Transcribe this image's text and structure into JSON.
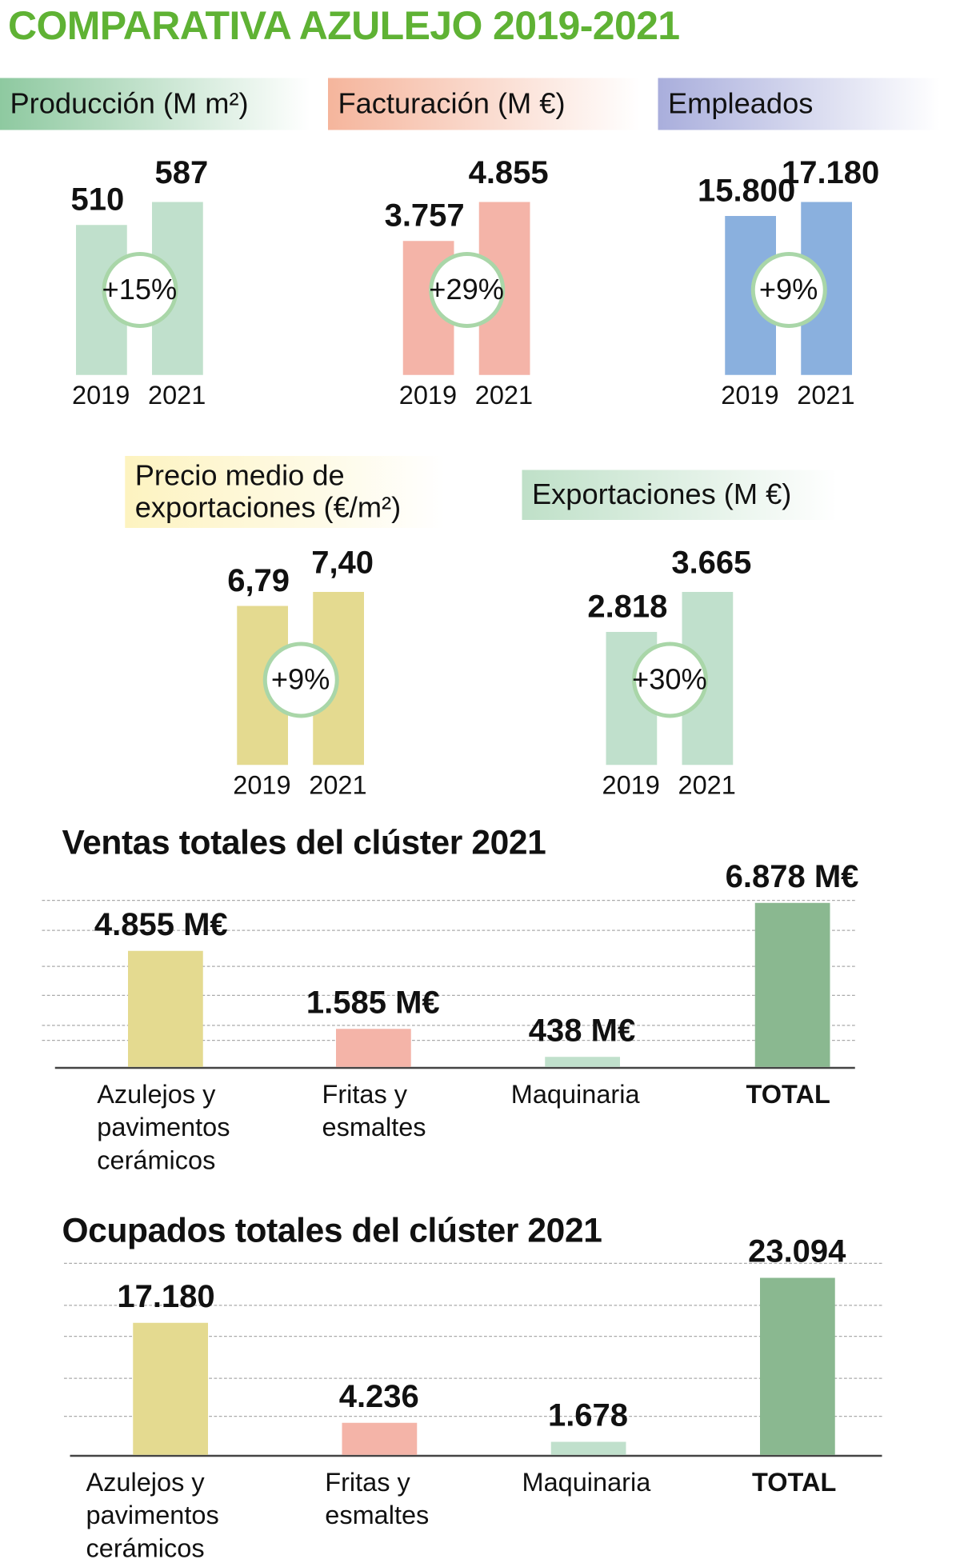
{
  "title": "COMPARATIVA AZULEJO 2019-2021",
  "colors": {
    "title": "#5fb234",
    "green_light": "#c0e0cc",
    "salmon": "#f4b4a8",
    "blue": "#8ab0de",
    "yellow": "#e4da90",
    "total_green": "#8ab890",
    "circle_border": "#a9d6a8"
  },
  "chart_data": [
    {
      "type": "bar",
      "title": "Producción (M m²)",
      "categories": [
        "2019",
        "2021"
      ],
      "values": [
        510,
        587
      ],
      "value_labels": [
        "510",
        "587"
      ],
      "change": "+15%",
      "color": "#c0e0cc"
    },
    {
      "type": "bar",
      "title": "Facturación (M €)",
      "categories": [
        "2019",
        "2021"
      ],
      "values": [
        3757,
        4855
      ],
      "value_labels": [
        "3.757",
        "4.855"
      ],
      "change": "+29%",
      "color": "#f4b4a8"
    },
    {
      "type": "bar",
      "title": "Empleados",
      "categories": [
        "2019",
        "2021"
      ],
      "values": [
        15800,
        17180
      ],
      "value_labels": [
        "15.800",
        "17.180"
      ],
      "change": "+9%",
      "color": "#8ab0de"
    },
    {
      "type": "bar",
      "title_lines": [
        "Precio medio de",
        "exportaciones (€/m²)"
      ],
      "categories": [
        "2019",
        "2021"
      ],
      "values": [
        6.79,
        7.4
      ],
      "value_labels": [
        "6,79",
        "7,40"
      ],
      "change": "+9%",
      "color": "#e4da90"
    },
    {
      "type": "bar",
      "title": "Exportaciones (M €)",
      "categories": [
        "2019",
        "2021"
      ],
      "values": [
        2818,
        3665
      ],
      "value_labels": [
        "2.818",
        "3.665"
      ],
      "change": "+30%",
      "color": "#c0e0cc"
    },
    {
      "type": "bar",
      "title": "Ventas totales del  clúster 2021",
      "categories": [
        "Azulejos y\npavimentos\ncerámicos",
        "Fritas y\nesmaltes",
        "Maquinaria",
        "TOTAL"
      ],
      "values": [
        4855,
        1585,
        438,
        6878
      ],
      "value_labels": [
        "4.855 M€",
        "1.585 M€",
        "438 M€",
        "6.878 M€"
      ],
      "colors": [
        "#e4da90",
        "#f4b4a8",
        "#c0e0cc",
        "#8ab890"
      ],
      "grid": true
    },
    {
      "type": "bar",
      "title": "Ocupados totales del  clúster 2021",
      "categories": [
        "Azulejos y\npavimentos\ncerámicos",
        "Fritas y\nesmaltes",
        "Maquinaria",
        "TOTAL"
      ],
      "values": [
        17180,
        4236,
        1678,
        23094
      ],
      "value_labels": [
        "17.180",
        "4.236",
        "1.678",
        "23.094"
      ],
      "colors": [
        "#e4da90",
        "#f4b4a8",
        "#c0e0cc",
        "#8ab890"
      ],
      "grid": true
    }
  ]
}
